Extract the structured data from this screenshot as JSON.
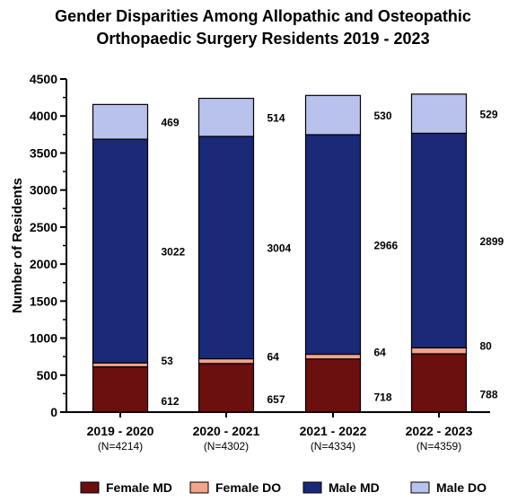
{
  "chart_data": {
    "type": "bar",
    "stacked": true,
    "title_lines": [
      "Gender Disparities Among Allopathic and Osteopathic",
      "Orthopaedic Surgery Residents 2019 - 2023"
    ],
    "ylabel": "Number of Residents",
    "xlabel": "",
    "ylim": [
      0,
      4500
    ],
    "yticks": [
      "0",
      "500",
      "1000",
      "1500",
      "2000",
      "2500",
      "3000",
      "3500",
      "4000",
      "4500"
    ],
    "categories": [
      "2019 - 2020",
      "2020 - 2021",
      "2021 - 2022",
      "2022 - 2023"
    ],
    "category_notes": [
      "(N=4214)",
      "(N=4302)",
      "(N=4334)",
      "(N=4359)"
    ],
    "series": [
      {
        "name": "Female MD",
        "color": "#6b0f0f",
        "values": [
          612,
          657,
          718,
          788
        ]
      },
      {
        "name": "Female DO",
        "color": "#f2a48c",
        "values": [
          53,
          64,
          64,
          80
        ]
      },
      {
        "name": "Male MD",
        "color": "#1a2a78",
        "values": [
          3022,
          3004,
          2966,
          2899
        ]
      },
      {
        "name": "Male DO",
        "color": "#b8c2ec",
        "values": [
          469,
          514,
          530,
          529
        ]
      }
    ],
    "grid": false,
    "legend_position": "bottom"
  }
}
